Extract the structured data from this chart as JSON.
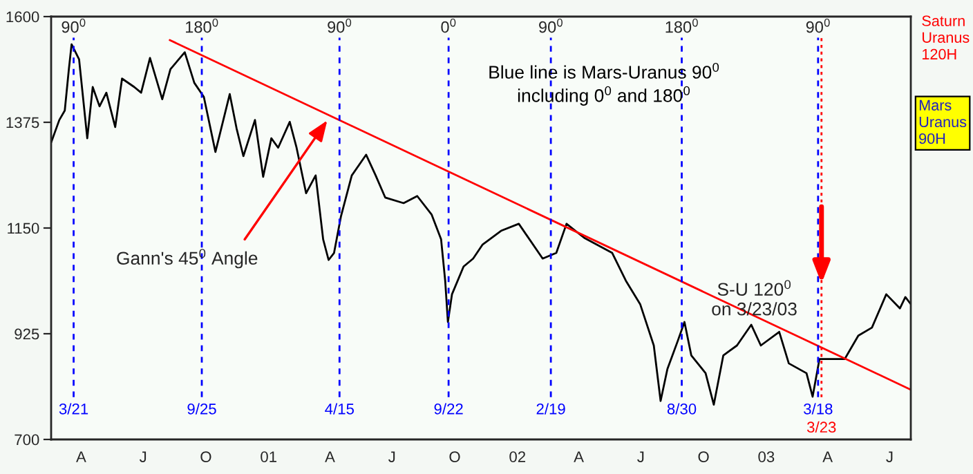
{
  "chart_data": {
    "type": "line",
    "xlim": [
      "2000-02-17",
      "2003-08-01"
    ],
    "ylim": [
      700,
      1600
    ],
    "yticks": [
      700,
      925,
      1150,
      1375,
      1600
    ],
    "xticks": [
      {
        "value": "2000-04-01",
        "label": "A"
      },
      {
        "value": "2000-07-01",
        "label": "J"
      },
      {
        "value": "2000-10-01",
        "label": "O"
      },
      {
        "value": "2001-01-01",
        "label": "01"
      },
      {
        "value": "2001-04-01",
        "label": "A"
      },
      {
        "value": "2001-07-01",
        "label": "J"
      },
      {
        "value": "2001-10-01",
        "label": "O"
      },
      {
        "value": "2002-01-01",
        "label": "02"
      },
      {
        "value": "2002-04-01",
        "label": "A"
      },
      {
        "value": "2002-07-01",
        "label": "J"
      },
      {
        "value": "2002-10-01",
        "label": "O"
      },
      {
        "value": "2003-01-01",
        "label": "03"
      },
      {
        "value": "2003-04-01",
        "label": "A"
      },
      {
        "value": "2003-07-01",
        "label": "J"
      }
    ],
    "grid": false,
    "series": [
      {
        "color": "#000000",
        "x": [
          "2000-02-17",
          "2000-02-29",
          "2000-03-08",
          "2000-03-14",
          "2000-03-18",
          "2000-03-29",
          "2000-04-10",
          "2000-04-18",
          "2000-04-28",
          "2000-05-08",
          "2000-05-21",
          "2000-05-31",
          "2000-06-18",
          "2000-06-28",
          "2000-07-11",
          "2000-07-29",
          "2000-08-10",
          "2000-08-31",
          "2000-09-14",
          "2000-09-28",
          "2000-10-15",
          "2000-11-05",
          "2000-11-15",
          "2000-11-25",
          "2000-12-12",
          "2000-12-24",
          "2001-01-05",
          "2001-01-15",
          "2001-02-01",
          "2001-02-11",
          "2001-02-25",
          "2001-03-11",
          "2001-03-22",
          "2001-03-30",
          "2001-04-07",
          "2001-04-17",
          "2001-05-03",
          "2001-05-24",
          "2001-06-07",
          "2001-06-21",
          "2001-07-18",
          "2001-08-07",
          "2001-08-28",
          "2001-09-11",
          "2001-09-17",
          "2001-09-21",
          "2001-09-27",
          "2001-10-14",
          "2001-10-28",
          "2001-11-11",
          "2001-12-08",
          "2002-01-03",
          "2002-02-07",
          "2002-02-27",
          "2002-03-14",
          "2002-04-09",
          "2002-05-20",
          "2002-06-09",
          "2002-06-30",
          "2002-07-20",
          "2002-07-30",
          "2002-08-09",
          "2002-08-24",
          "2002-09-03",
          "2002-09-13",
          "2002-10-04",
          "2002-10-16",
          "2002-10-30",
          "2002-11-19",
          "2002-12-10",
          "2002-12-24",
          "2003-01-20",
          "2003-02-03",
          "2003-03-01",
          "2003-03-10",
          "2003-03-20",
          "2003-04-05",
          "2003-04-26",
          "2003-05-16",
          "2003-06-05",
          "2003-06-26",
          "2003-07-16",
          "2003-07-24",
          "2003-08-01"
        ],
        "values": [
          1332,
          1380,
          1400,
          1488,
          1541,
          1509,
          1341,
          1450,
          1409,
          1438,
          1365,
          1468,
          1450,
          1438,
          1512,
          1424,
          1488,
          1524,
          1459,
          1429,
          1312,
          1435,
          1362,
          1303,
          1380,
          1259,
          1341,
          1321,
          1376,
          1321,
          1224,
          1262,
          1126,
          1082,
          1097,
          1174,
          1262,
          1306,
          1262,
          1215,
          1203,
          1218,
          1179,
          1126,
          1038,
          950,
          1009,
          1068,
          1085,
          1115,
          1144,
          1159,
          1085,
          1097,
          1159,
          1129,
          1097,
          1038,
          988,
          900,
          782,
          850,
          909,
          950,
          879,
          841,
          774,
          879,
          900,
          944,
          900,
          929,
          862,
          841,
          791,
          871,
          871,
          871,
          921,
          938,
          1009,
          979,
          1003,
          988
        ]
      },
      {
        "color": "#ff0000",
        "x": [
          "2000-08-09",
          "2003-08-01"
        ],
        "values": [
          1550,
          806
        ]
      }
    ],
    "ref_lines": [
      {
        "axis": "x",
        "value": "2000-03-21",
        "label": "3/21",
        "color": "#0000ff",
        "line_style": "dashed"
      },
      {
        "axis": "x",
        "value": "2000-09-25",
        "label": "9/25",
        "color": "#0000ff",
        "line_style": "dashed"
      },
      {
        "axis": "x",
        "value": "2001-04-15",
        "label": "4/15",
        "color": "#0000ff",
        "line_style": "dashed"
      },
      {
        "axis": "x",
        "value": "2001-09-22",
        "label": "9/22",
        "color": "#0000ff",
        "line_style": "dashed"
      },
      {
        "axis": "x",
        "value": "2002-02-19",
        "label": "2/19",
        "color": "#0000ff",
        "line_style": "dashed"
      },
      {
        "axis": "x",
        "value": "2002-08-30",
        "label": "8/30",
        "color": "#0000ff",
        "line_style": "dashed"
      },
      {
        "axis": "x",
        "value": "2003-03-18",
        "label": "3/18",
        "color": "#0000ff",
        "line_style": "dashed"
      },
      {
        "axis": "x",
        "value": "2003-03-23",
        "label": "3/23",
        "color": "#ff0000",
        "line_style": "dotted"
      }
    ],
    "annotations": [
      "90$^{0}$",
      "180$^{0}$",
      "90$^{0}$",
      "0$^{0}$",
      "90$^{0}$",
      "180$^{0}$",
      "90$^{0}$",
      "Blue line is Mars-Uranus 90$^{0}$\nincluding 0$^{0}$ and 180$^{0}$",
      {
        "text": "Gann's 45$^{0}$ Angle",
        "x": "2001-03-28",
        "y": 1379
      },
      {
        "text": "S-U 120$^{0}$\non 3/23/03",
        "x": "2003-03-23",
        "y": 1032
      },
      "Saturn\nUranus\n120H",
      "Mars\nUranus\n90H"
    ]
  }
}
